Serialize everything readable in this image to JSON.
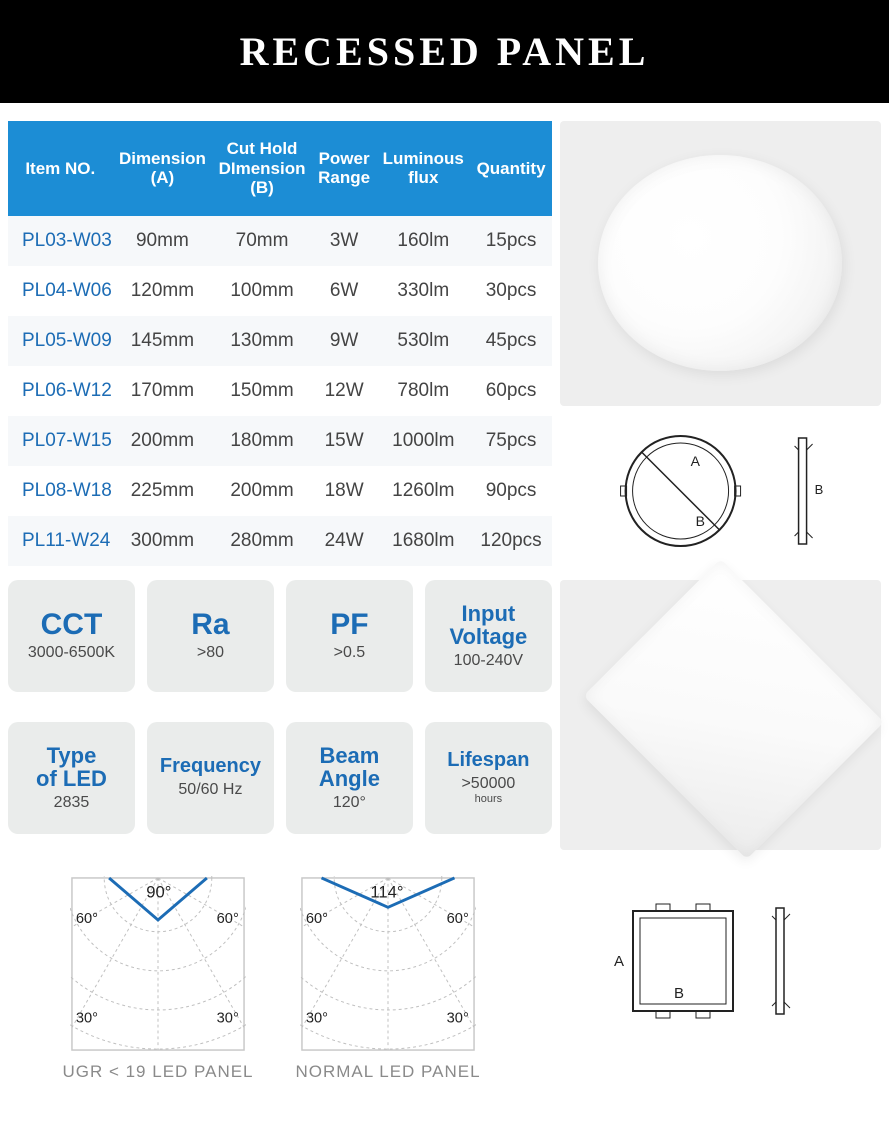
{
  "title": "RECESSED PANEL",
  "table": {
    "columns": [
      "Item NO.",
      "Dimension\n(A)",
      "Cut Hold\nDImension\n(B)",
      "Power\nRange",
      "Luminous\nflux",
      "Quantity"
    ],
    "rows": [
      [
        "PL03-W03",
        "90mm",
        "70mm",
        "3W",
        "160lm",
        "15pcs"
      ],
      [
        "PL04-W06",
        "120mm",
        "100mm",
        "6W",
        "330lm",
        "30pcs"
      ],
      [
        "PL05-W09",
        "145mm",
        "130mm",
        "9W",
        "530lm",
        "45pcs"
      ],
      [
        "PL06-W12",
        "170mm",
        "150mm",
        "12W",
        "780lm",
        "60pcs"
      ],
      [
        "PL07-W15",
        "200mm",
        "180mm",
        "15W",
        "1000lm",
        "75pcs"
      ],
      [
        "PL08-W18",
        "225mm",
        "200mm",
        "18W",
        "1260lm",
        "90pcs"
      ],
      [
        "PL11-W24",
        "300mm",
        "280mm",
        "24W",
        "1680lm",
        "120pcs"
      ]
    ],
    "header_bg": "#1c8dd5",
    "header_color": "#ffffff",
    "row_alt_bg": "#f6f8fa",
    "itemno_color": "#1c6cb5"
  },
  "product_shapes": {
    "round": {
      "bg": "#eeeeee"
    },
    "square": {
      "bg": "#eeeeee"
    }
  },
  "round_diagram": {
    "labels": {
      "A": "A",
      "B": "B"
    }
  },
  "square_diagram": {
    "labels": {
      "A": "A",
      "B": "B"
    }
  },
  "specs": [
    {
      "big": "CCT",
      "size": "lg",
      "sub": "3000-6500K"
    },
    {
      "big": "Ra",
      "size": "lg",
      "sub": ">80"
    },
    {
      "big": "PF",
      "size": "lg",
      "sub": ">0.5"
    },
    {
      "big": "Input\nVoltage",
      "size": "med",
      "sub": "100-240V"
    },
    {
      "big": "Type\nof LED",
      "size": "med",
      "sub": "2835"
    },
    {
      "big": "Frequency",
      "size": "sm",
      "sub": "50/60 Hz"
    },
    {
      "big": "Beam\nAngle",
      "size": "med",
      "sub": "120°"
    },
    {
      "big": "Lifespan",
      "size": "sm",
      "sub": ">50000",
      "subxs": "hours"
    }
  ],
  "polar": {
    "left": {
      "apex": "90°",
      "sides": [
        "60°",
        "60°",
        "30°",
        "30°"
      ],
      "caption": "UGR < 19 LED PANEL",
      "line_color": "#1c6cb5"
    },
    "right": {
      "apex": "114°",
      "sides": [
        "60°",
        "60°",
        "30°",
        "30°"
      ],
      "caption": "NORMAL LED PANEL",
      "line_color": "#1c6cb5"
    }
  },
  "colors": {
    "brand_blue": "#1c6cb5",
    "header_blue": "#1c8dd5",
    "spec_bg": "#eaeceb",
    "caption_gray": "#8a8a8a"
  }
}
